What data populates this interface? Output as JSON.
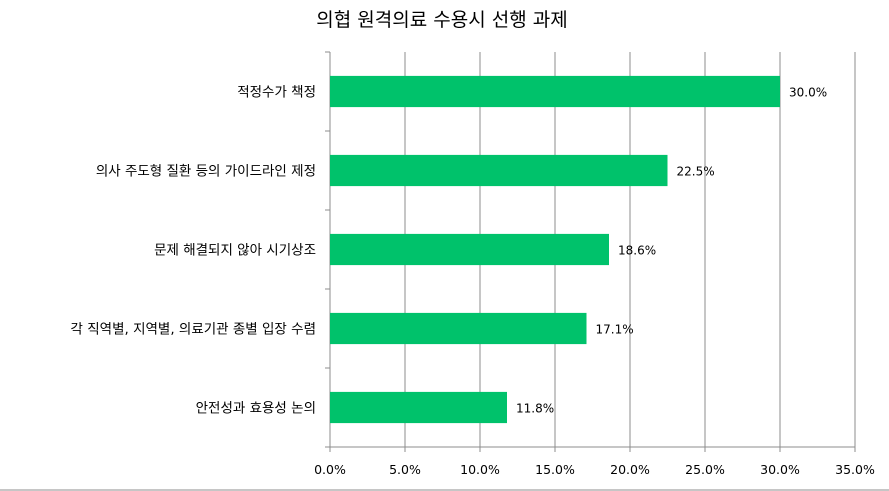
{
  "chart_data": {
    "type": "bar",
    "orientation": "horizontal",
    "title": "의협 원격의료 수용시 선행 과제",
    "xlabel": "",
    "ylabel": "",
    "categories": [
      "적정수가 책정",
      "의사 주도형 질환 등의 가이드라인 제정",
      "문제 해결되지 않아 시기상조",
      "각 직역별, 지역별, 의료기관 종별 입장 수렴",
      "안전성과 효용성 논의"
    ],
    "values": [
      30.0,
      22.5,
      18.6,
      17.1,
      11.8
    ],
    "data_labels": [
      "30.0%",
      "22.5%",
      "18.6%",
      "17.1%",
      "11.8%"
    ],
    "xlim": [
      0,
      35
    ],
    "ticks": [
      0,
      5,
      10,
      15,
      20,
      25,
      30,
      35
    ],
    "tick_labels": [
      "0.0%",
      "5.0%",
      "10.0%",
      "15.0%",
      "20.0%",
      "25.0%",
      "30.0%",
      "35.0%"
    ],
    "grid": true,
    "legend": "none",
    "bar_color": "#00c26b"
  }
}
